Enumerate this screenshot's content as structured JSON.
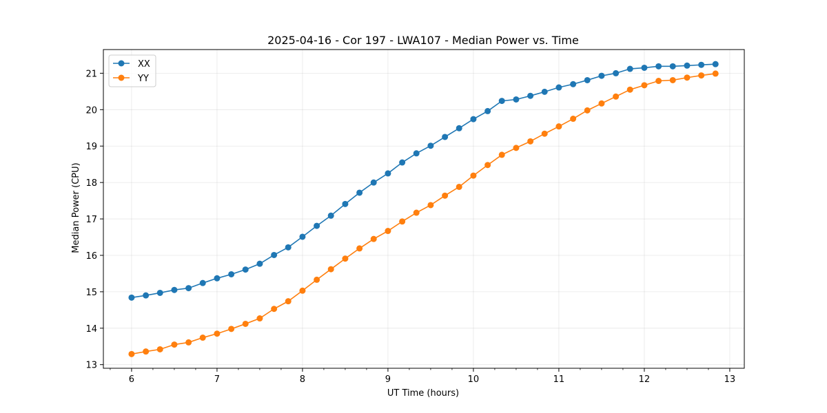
{
  "chart_data": {
    "type": "line",
    "title": "2025-04-16 - Cor 197 - LWA107 - Median Power vs. Time",
    "xlabel": "UT Time (hours)",
    "ylabel": "Median Power (CPU)",
    "xlim": [
      5.67,
      13.17
    ],
    "ylim": [
      12.9,
      21.65
    ],
    "xticks": [
      6,
      7,
      8,
      9,
      10,
      11,
      12,
      13
    ],
    "yticks": [
      13,
      14,
      15,
      16,
      17,
      18,
      19,
      20,
      21
    ],
    "grid": true,
    "legend_position": "upper-left",
    "x": [
      6.0,
      6.167,
      6.333,
      6.5,
      6.667,
      6.833,
      7.0,
      7.167,
      7.333,
      7.5,
      7.667,
      7.833,
      8.0,
      8.167,
      8.333,
      8.5,
      8.667,
      8.833,
      9.0,
      9.167,
      9.333,
      9.5,
      9.667,
      9.833,
      10.0,
      10.167,
      10.333,
      10.5,
      10.667,
      10.833,
      11.0,
      11.167,
      11.333,
      11.5,
      11.667,
      11.833,
      12.0,
      12.167,
      12.333,
      12.5,
      12.667,
      12.833
    ],
    "series": [
      {
        "name": "XX",
        "color": "#1f77b4",
        "values": [
          14.84,
          14.9,
          14.97,
          15.05,
          15.1,
          15.24,
          15.37,
          15.48,
          15.61,
          15.77,
          16.01,
          16.22,
          16.51,
          16.81,
          17.09,
          17.41,
          17.72,
          18.0,
          18.25,
          18.55,
          18.8,
          19.01,
          19.25,
          19.49,
          19.74,
          19.96,
          20.24,
          20.28,
          20.38,
          20.49,
          20.61,
          20.7,
          20.81,
          20.93,
          21.0,
          21.12,
          21.15,
          21.19,
          21.19,
          21.21,
          21.23,
          21.25
        ]
      },
      {
        "name": "YY",
        "color": "#ff7f0e",
        "values": [
          13.29,
          13.36,
          13.42,
          13.55,
          13.61,
          13.74,
          13.85,
          13.98,
          14.12,
          14.27,
          14.53,
          14.74,
          15.03,
          15.33,
          15.62,
          15.91,
          16.19,
          16.45,
          16.67,
          16.93,
          17.17,
          17.38,
          17.64,
          17.88,
          18.19,
          18.48,
          18.76,
          18.95,
          19.13,
          19.34,
          19.54,
          19.75,
          19.98,
          20.17,
          20.36,
          20.55,
          20.67,
          20.79,
          20.81,
          20.88,
          20.94,
          20.99
        ]
      }
    ]
  }
}
